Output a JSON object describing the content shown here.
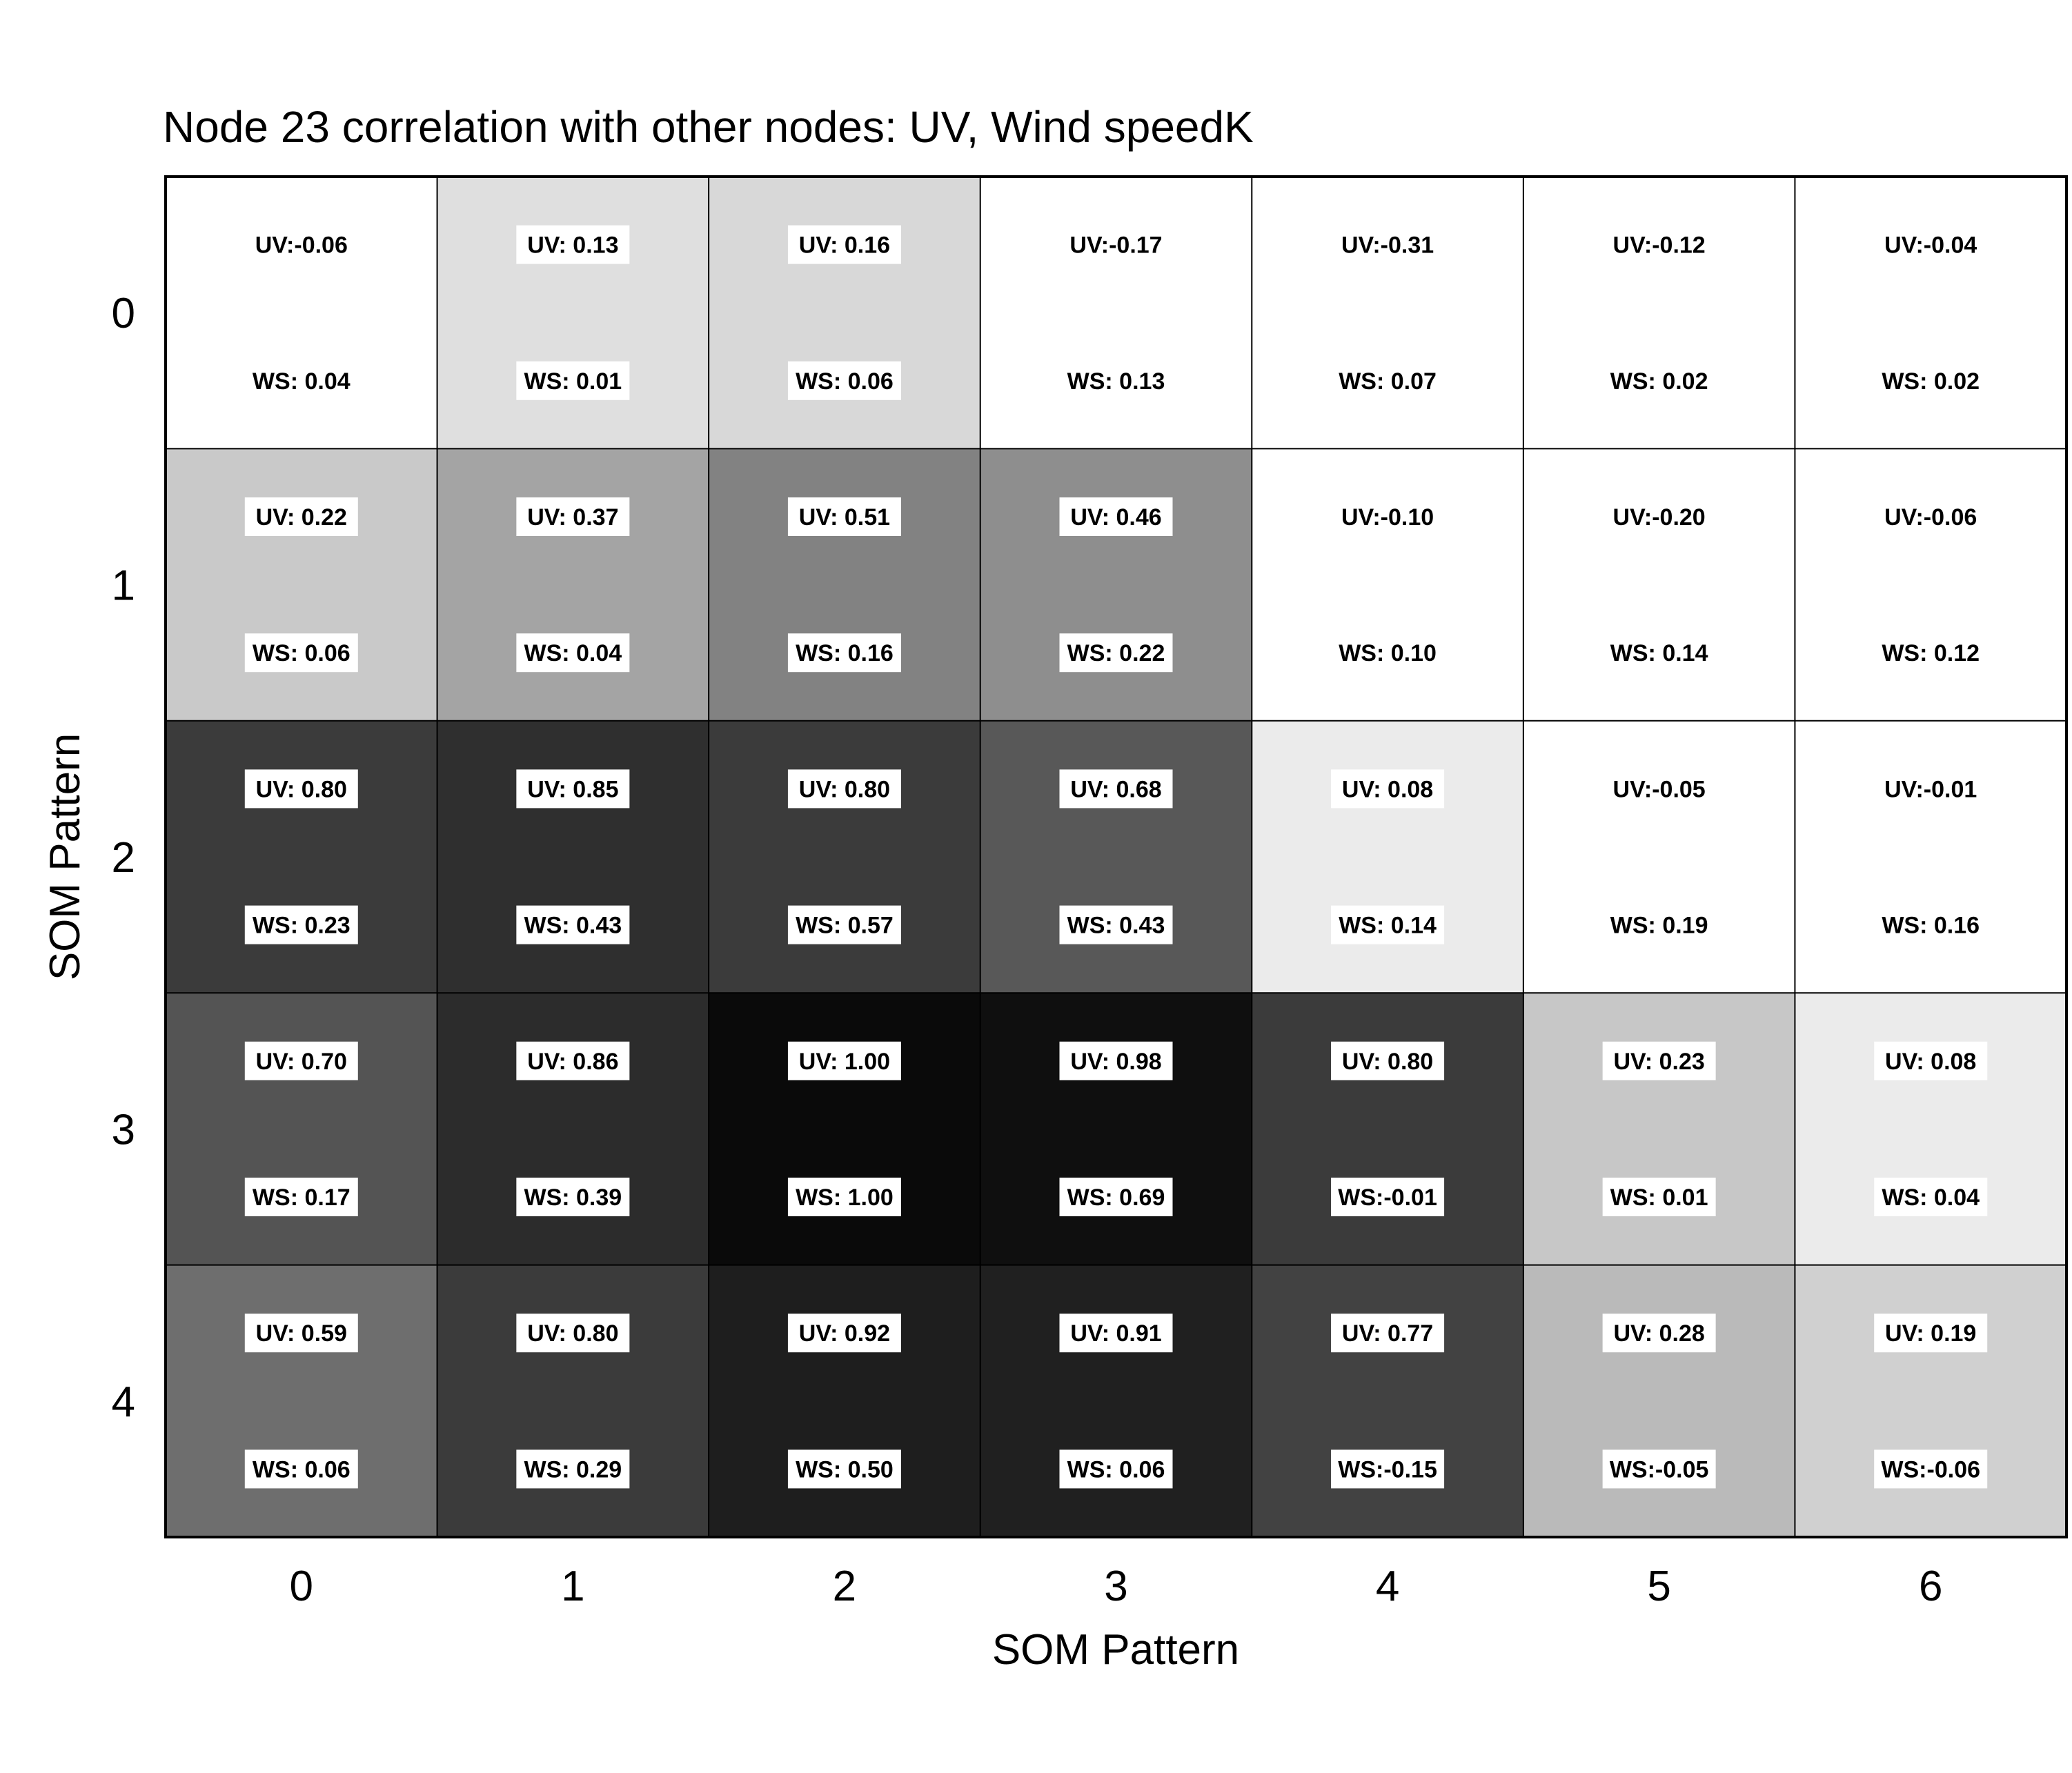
{
  "chart_data": {
    "type": "heatmap",
    "title": "Node 23 correlation with other nodes: UV, Wind speedK",
    "xlabel": "SOM Pattern",
    "ylabel": "SOM Pattern",
    "x_ticks": [
      "0",
      "1",
      "2",
      "3",
      "4",
      "5",
      "6"
    ],
    "y_ticks": [
      "0",
      "1",
      "2",
      "3",
      "4"
    ],
    "color_scale": "greyscale (darker = higher UV correlation)",
    "series": [
      {
        "name": "UV",
        "values": [
          [
            -0.06,
            0.13,
            0.16,
            -0.17,
            -0.31,
            -0.12,
            -0.04
          ],
          [
            0.22,
            0.37,
            0.51,
            0.46,
            -0.1,
            -0.2,
            -0.06
          ],
          [
            0.8,
            0.85,
            0.8,
            0.68,
            0.08,
            -0.05,
            -0.01
          ],
          [
            0.7,
            0.86,
            1.0,
            0.98,
            0.8,
            0.23,
            0.08
          ],
          [
            0.59,
            0.8,
            0.92,
            0.91,
            0.77,
            0.28,
            0.19
          ]
        ]
      },
      {
        "name": "WS",
        "values": [
          [
            0.04,
            0.01,
            0.06,
            0.13,
            0.07,
            0.02,
            0.02
          ],
          [
            0.06,
            0.04,
            0.16,
            0.22,
            0.1,
            0.14,
            0.12
          ],
          [
            0.23,
            0.43,
            0.57,
            0.43,
            0.14,
            0.19,
            0.16
          ],
          [
            0.17,
            0.39,
            1.0,
            0.69,
            -0.01,
            0.01,
            0.04
          ],
          [
            0.06,
            0.29,
            0.5,
            0.06,
            -0.15,
            -0.05,
            -0.06
          ]
        ]
      }
    ],
    "uv_labels": [
      [
        "UV:-0.06",
        "UV: 0.13",
        "UV: 0.16",
        "UV:-0.17",
        "UV:-0.31",
        "UV:-0.12",
        "UV:-0.04"
      ],
      [
        "UV: 0.22",
        "UV: 0.37",
        "UV: 0.51",
        "UV: 0.46",
        "UV:-0.10",
        "UV:-0.20",
        "UV:-0.06"
      ],
      [
        "UV: 0.80",
        "UV: 0.85",
        "UV: 0.80",
        "UV: 0.68",
        "UV: 0.08",
        "UV:-0.05",
        "UV:-0.01"
      ],
      [
        "UV: 0.70",
        "UV: 0.86",
        "UV: 1.00",
        "UV: 0.98",
        "UV: 0.80",
        "UV: 0.23",
        "UV: 0.08"
      ],
      [
        "UV: 0.59",
        "UV: 0.80",
        "UV: 0.92",
        "UV: 0.91",
        "UV: 0.77",
        "UV: 0.28",
        "UV: 0.19"
      ]
    ],
    "ws_labels": [
      [
        "WS: 0.04",
        "WS: 0.01",
        "WS: 0.06",
        "WS: 0.13",
        "WS: 0.07",
        "WS: 0.02",
        "WS: 0.02"
      ],
      [
        "WS: 0.06",
        "WS: 0.04",
        "WS: 0.16",
        "WS: 0.22",
        "WS: 0.10",
        "WS: 0.14",
        "WS: 0.12"
      ],
      [
        "WS: 0.23",
        "WS: 0.43",
        "WS: 0.57",
        "WS: 0.43",
        "WS: 0.14",
        "WS: 0.19",
        "WS: 0.16"
      ],
      [
        "WS: 0.17",
        "WS: 0.39",
        "WS: 1.00",
        "WS: 0.69",
        "WS:-0.01",
        "WS: 0.01",
        "WS: 0.04"
      ],
      [
        "WS: 0.06",
        "WS: 0.29",
        "WS: 0.50",
        "WS: 0.06",
        "WS:-0.15",
        "WS:-0.05",
        "WS:-0.06"
      ]
    ]
  }
}
